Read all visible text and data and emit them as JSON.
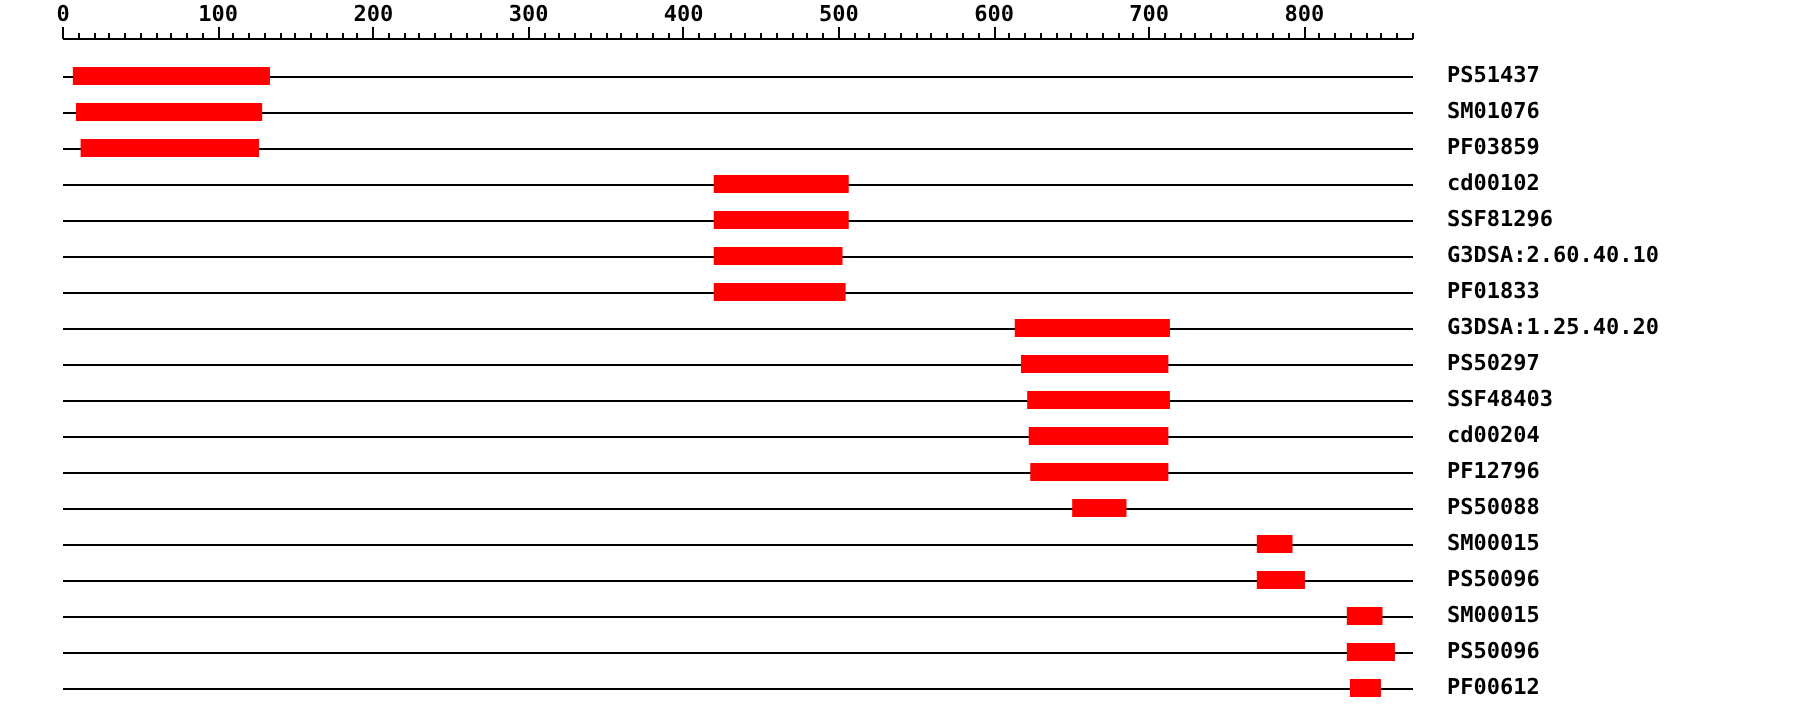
{
  "chart_data": {
    "type": "bar",
    "orientation": "horizontal",
    "categories": [
      "PS51437",
      "SM01076",
      "PF03859",
      "cd00102",
      "SSF81296",
      "G3DSA:2.60.40.10",
      "PF01833",
      "G3DSA:1.25.40.20",
      "PS50297",
      "SSF48403",
      "cd00204",
      "PF12796",
      "PS50088",
      "SM00015",
      "PS50096",
      "SM00015",
      "PS50096",
      "PF00612"
    ],
    "base": [
      7,
      9,
      12,
      420,
      420,
      420,
      420,
      614,
      618,
      622,
      623,
      624,
      651,
      770,
      770,
      828,
      828,
      830
    ],
    "values": [
      127,
      120,
      115,
      87,
      87,
      83,
      85,
      100,
      95,
      92,
      90,
      89,
      35,
      23,
      31,
      23,
      31,
      20
    ],
    "color": "#ff0000",
    "xlim": [
      0,
      870
    ],
    "xticks": [
      0,
      {
        "value": 10,
        "label": null
      },
      {
        "value": 20,
        "label": null
      },
      {
        "value": 30,
        "label": null
      },
      {
        "value": 40,
        "label": null
      },
      {
        "value": 50,
        "label": null
      },
      {
        "value": 60,
        "label": null
      },
      {
        "value": 70,
        "label": null
      },
      {
        "value": 80,
        "label": null
      },
      {
        "value": 90,
        "label": null
      },
      100,
      {
        "value": 110,
        "label": null
      },
      {
        "value": 120,
        "label": null
      },
      {
        "value": 130,
        "label": null
      },
      {
        "value": 140,
        "label": null
      },
      {
        "value": 150,
        "label": null
      },
      {
        "value": 160,
        "label": null
      },
      {
        "value": 170,
        "label": null
      },
      {
        "value": 180,
        "label": null
      },
      {
        "value": 190,
        "label": null
      },
      200,
      {
        "value": 210,
        "label": null
      },
      {
        "value": 220,
        "label": null
      },
      {
        "value": 230,
        "label": null
      },
      {
        "value": 240,
        "label": null
      },
      {
        "value": 250,
        "label": null
      },
      {
        "value": 260,
        "label": null
      },
      {
        "value": 270,
        "label": null
      },
      {
        "value": 280,
        "label": null
      },
      {
        "value": 290,
        "label": null
      },
      300,
      {
        "value": 310,
        "label": null
      },
      {
        "value": 320,
        "label": null
      },
      {
        "value": 330,
        "label": null
      },
      {
        "value": 340,
        "label": null
      },
      {
        "value": 350,
        "label": null
      },
      {
        "value": 360,
        "label": null
      },
      {
        "value": 370,
        "label": null
      },
      {
        "value": 380,
        "label": null
      },
      {
        "value": 390,
        "label": null
      },
      400,
      {
        "value": 410,
        "label": null
      },
      {
        "value": 420,
        "label": null
      },
      {
        "value": 430,
        "label": null
      },
      {
        "value": 440,
        "label": null
      },
      {
        "value": 450,
        "label": null
      },
      {
        "value": 460,
        "label": null
      },
      {
        "value": 470,
        "label": null
      },
      {
        "value": 480,
        "label": null
      },
      {
        "value": 490,
        "label": null
      },
      500,
      {
        "value": 510,
        "label": null
      },
      {
        "value": 520,
        "label": null
      },
      {
        "value": 530,
        "label": null
      },
      {
        "value": 540,
        "label": null
      },
      {
        "value": 550,
        "label": null
      },
      {
        "value": 560,
        "label": null
      },
      {
        "value": 570,
        "label": null
      },
      {
        "value": 580,
        "label": null
      },
      {
        "value": 590,
        "label": null
      },
      600,
      {
        "value": 610,
        "label": null
      },
      {
        "value": 620,
        "label": null
      },
      {
        "value": 630,
        "label": null
      },
      {
        "value": 640,
        "label": null
      },
      {
        "value": 650,
        "label": null
      },
      {
        "value": 660,
        "label": null
      },
      {
        "value": 670,
        "label": null
      },
      {
        "value": 680,
        "label": null
      },
      {
        "value": 690,
        "label": null
      },
      700,
      {
        "value": 710,
        "label": null
      },
      {
        "value": 720,
        "label": null
      },
      {
        "value": 730,
        "label": null
      },
      {
        "value": 740,
        "label": null
      },
      {
        "value": 750,
        "label": null
      },
      {
        "value": 760,
        "label": null
      },
      {
        "value": 770,
        "label": null
      },
      {
        "value": 780,
        "label": null
      },
      {
        "value": 790,
        "label": null
      },
      800,
      {
        "value": 810,
        "label": null
      },
      {
        "value": 820,
        "label": null
      },
      {
        "value": 830,
        "label": null
      },
      {
        "value": 840,
        "label": null
      },
      {
        "value": 850,
        "label": null
      },
      {
        "value": 860,
        "label": null
      },
      {
        "value": 870,
        "label": null
      }
    ],
    "grid": "y"
  }
}
